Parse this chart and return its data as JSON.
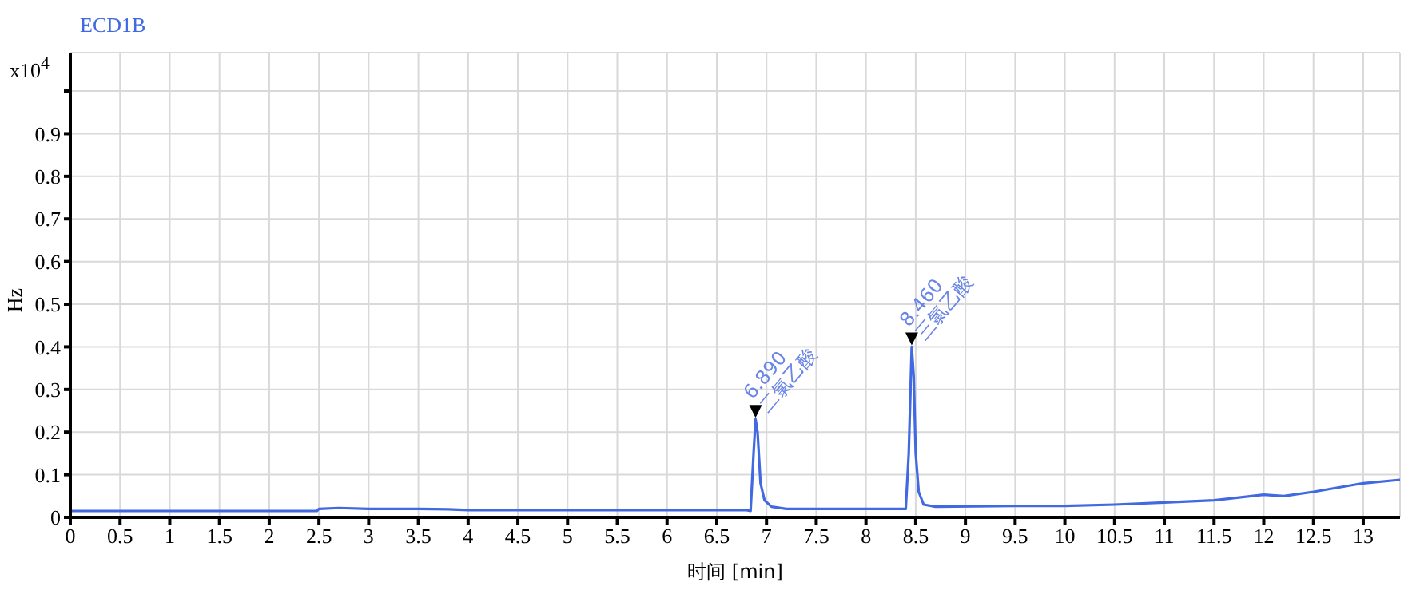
{
  "chart_data": {
    "type": "line",
    "title": "ECD1B",
    "xlabel": "时间 [min]",
    "ylabel": "Hz",
    "annotations": [
      "x10$^{4}$",
      {
        "text": "6.890 二氯乙酸",
        "x": 6.89,
        "y": 0.23
      },
      {
        "text": "8.460 三氯乙酸",
        "x": 8.46,
        "y": 0.4
      }
    ],
    "series": [
      {
        "color": "#4169e1",
        "x": [
          0,
          1,
          2,
          2.48,
          2.5,
          2.7,
          3.0,
          3.5,
          3.8,
          4.0,
          5.0,
          6.0,
          6.8,
          6.84,
          6.87,
          6.89,
          6.91,
          6.94,
          6.98,
          7.05,
          7.2,
          8.0,
          8.4,
          8.43,
          8.46,
          8.48,
          8.5,
          8.53,
          8.58,
          8.7,
          9.5,
          10.0,
          10.5,
          11.0,
          11.5,
          12.0,
          12.2,
          12.5,
          13.0,
          13.37
        ],
        "values": [
          0.015,
          0.015,
          0.015,
          0.015,
          0.02,
          0.022,
          0.02,
          0.02,
          0.019,
          0.017,
          0.017,
          0.017,
          0.017,
          0.015,
          0.15,
          0.23,
          0.2,
          0.08,
          0.04,
          0.025,
          0.02,
          0.02,
          0.02,
          0.15,
          0.4,
          0.33,
          0.15,
          0.06,
          0.03,
          0.025,
          0.027,
          0.027,
          0.03,
          0.035,
          0.04,
          0.053,
          0.05,
          0.06,
          0.08,
          0.088
        ]
      }
    ],
    "xlim": [
      0,
      13.37
    ],
    "xticks": [
      0,
      0.5,
      1,
      1.5,
      2,
      2.5,
      3,
      3.5,
      4,
      4.5,
      5,
      5.5,
      6,
      6.5,
      7,
      7.5,
      8,
      8.5,
      9,
      9.5,
      10,
      10.5,
      11,
      11.5,
      12,
      12.5,
      13
    ],
    "ylim": [
      0,
      1.09
    ],
    "yticks": [
      0,
      0.1,
      0.2,
      0.3,
      0.4,
      0.5,
      0.6,
      0.7,
      0.8,
      0.9,
      {
        "value": 1,
        "label": null
      }
    ],
    "grid": true,
    "line_style": "solid"
  }
}
